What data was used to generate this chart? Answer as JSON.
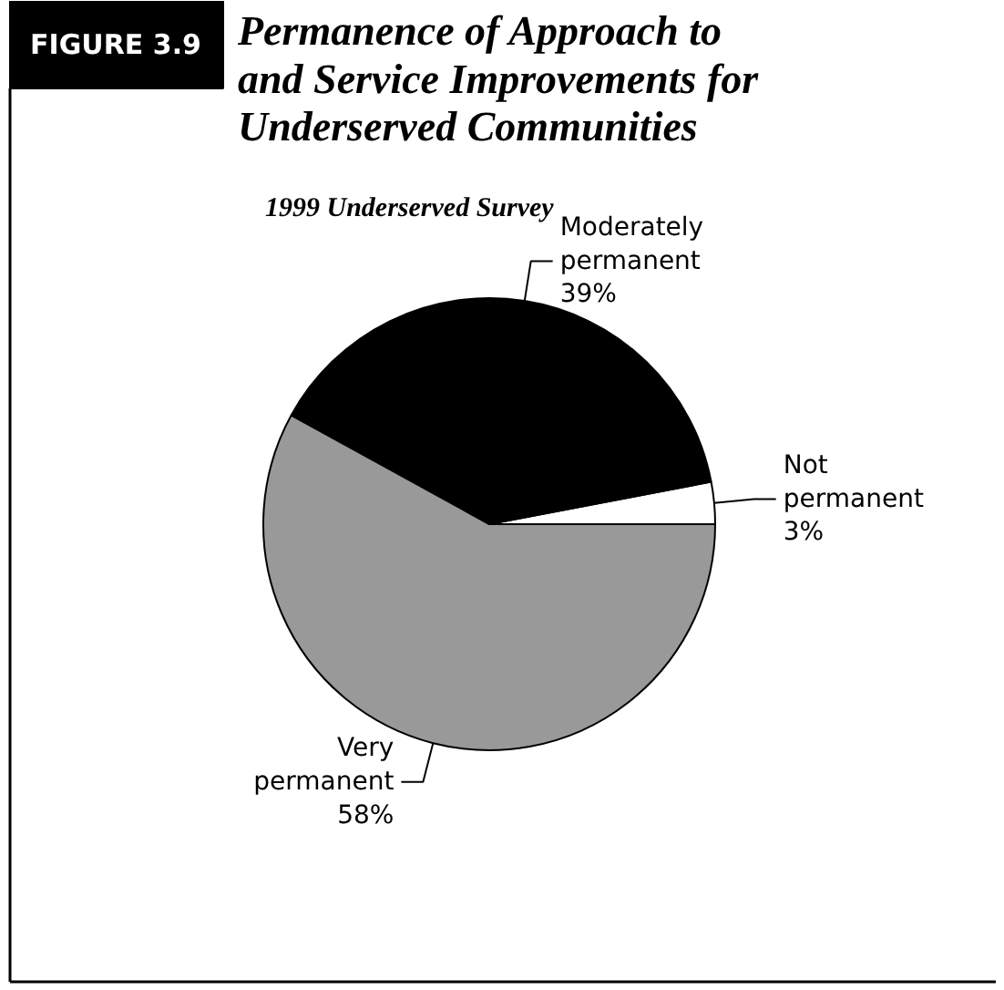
{
  "chart_data": {
    "type": "pie",
    "title": "Permanence of Approach to and Service Improvements for Underserved Communities",
    "subtitle": "1999 Underserved Survey",
    "annotations": [
      "FIGURE 3.9"
    ],
    "categories": [
      "Not permanent",
      "Moderately permanent",
      "Very permanent"
    ],
    "values": [
      3,
      39,
      58
    ],
    "colors": [
      "#ffffff",
      "#000000",
      "#999999"
    ],
    "value_labels": [
      "3%",
      "39%",
      "58%"
    ]
  }
}
